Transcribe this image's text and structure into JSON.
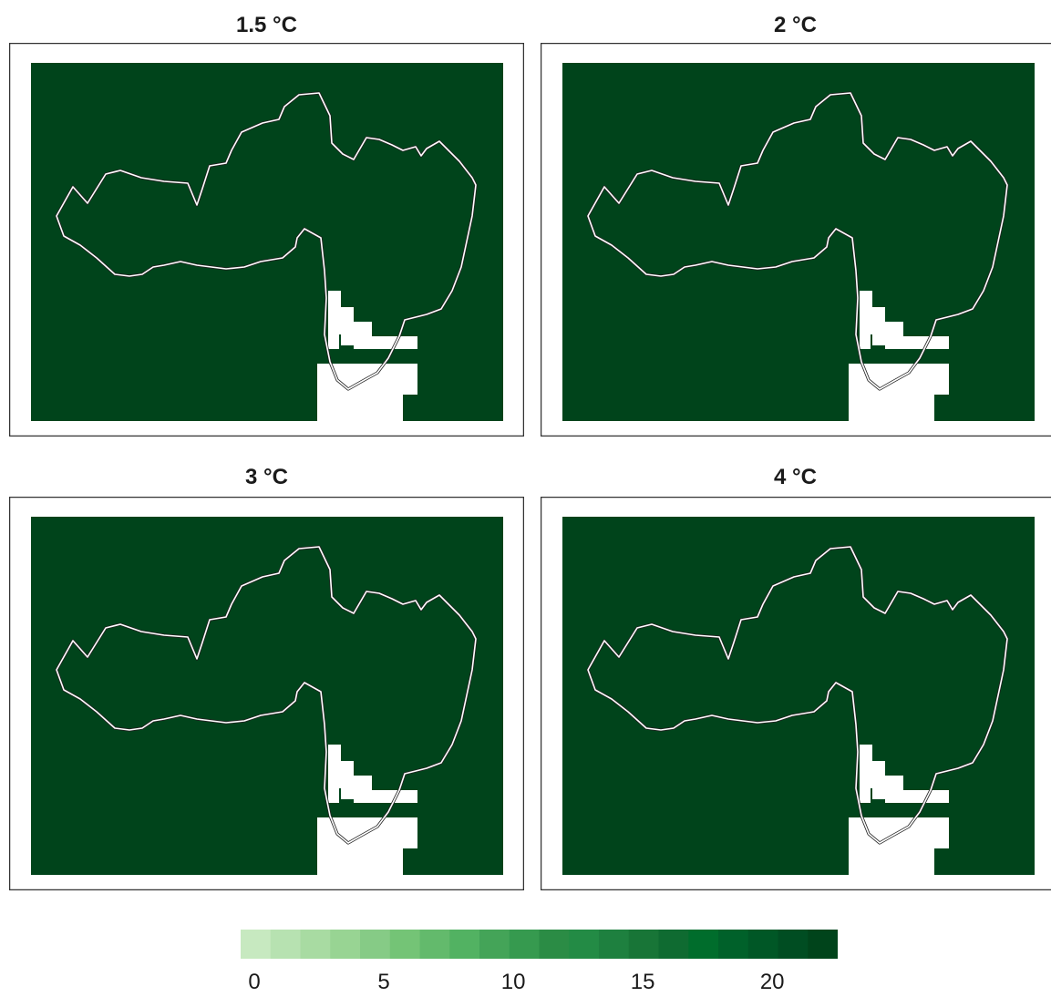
{
  "panels": [
    {
      "title": "1.5 °C"
    },
    {
      "title": "2 °C"
    },
    {
      "title": "3 °C"
    },
    {
      "title": "4 °C"
    }
  ],
  "colorbar": {
    "min": 0,
    "max": 22,
    "ticks": [
      "0",
      "5",
      "10",
      "15",
      "20"
    ],
    "tick_values": [
      0,
      5,
      10,
      15,
      20
    ],
    "colors": [
      "#c7e9c0",
      "#b7e2b1",
      "#a8dba2",
      "#98d493",
      "#86cb86",
      "#74c476",
      "#63ba6c",
      "#52b262",
      "#44a458",
      "#369a4f",
      "#2b8c45",
      "#238b45",
      "#1e803f",
      "#187537",
      "#0f6b31",
      "#006d2c",
      "#00612a",
      "#005726",
      "#004d22",
      "#00441b"
    ]
  },
  "colors": {
    "map_fill": "#00441b",
    "masked": "#ffffff",
    "outline": "#ffffff"
  }
}
